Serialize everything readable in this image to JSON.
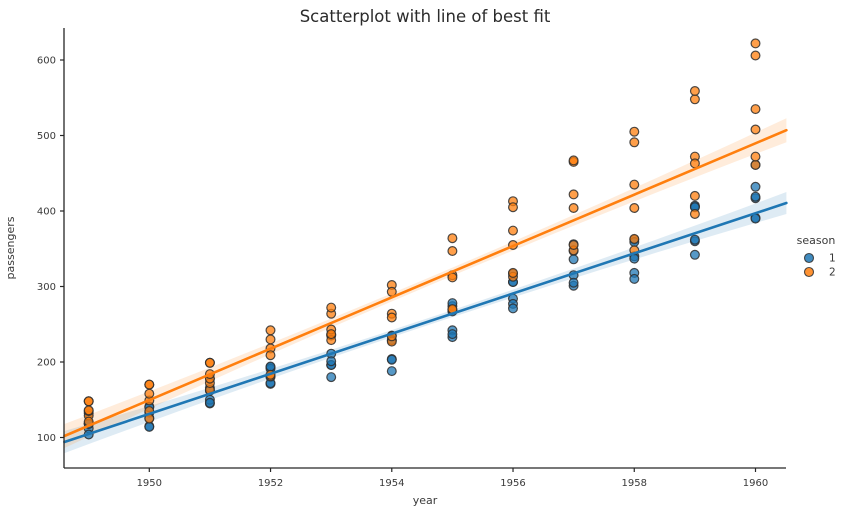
{
  "title": "Scatterplot with line of best fit",
  "x_axis": {
    "label": "year",
    "ticks": [
      "1950",
      "1952",
      "1954",
      "1956",
      "1958",
      "1960"
    ],
    "tick_years": [
      1950,
      1952,
      1954,
      1956,
      1958,
      1960
    ]
  },
  "y_axis": {
    "label": "passengers",
    "ticks": [
      "100",
      "200",
      "300",
      "400",
      "500",
      "600"
    ],
    "tick_values": [
      100,
      200,
      300,
      400,
      500,
      600
    ]
  },
  "legend": {
    "title": "season",
    "items": [
      {
        "label": "1",
        "color": "#1f77b4"
      },
      {
        "label": "2",
        "color": "#ff7f0e"
      }
    ]
  },
  "colors": {
    "season1": "#1f77b4",
    "season2": "#ff7f0e",
    "point_edge": "#2e2e2e",
    "spine": "#262626",
    "band1": "rgba(31,119,180,0.15)",
    "band2": "rgba(255,127,14,0.15)"
  },
  "chart_data": {
    "type": "scatter",
    "title": "Scatterplot with line of best fit",
    "xlabel": "year",
    "ylabel": "passengers",
    "xlim": [
      1948.6,
      1960.51
    ],
    "ylim": [
      57,
      640
    ],
    "grid": false,
    "legend_position": "right",
    "x": [
      1949,
      1950,
      1951,
      1952,
      1953,
      1954,
      1955,
      1956,
      1957,
      1958,
      1959,
      1960
    ],
    "series": [
      {
        "name": "1",
        "color": "#1f77b4",
        "values_by_year": [
          [
            112,
            118,
            132,
            119,
            104,
            118
          ],
          [
            115,
            126,
            141,
            133,
            114,
            140
          ],
          [
            145,
            150,
            178,
            162,
            146,
            166
          ],
          [
            171,
            180,
            193,
            191,
            172,
            194
          ],
          [
            196,
            196,
            236,
            211,
            180,
            201
          ],
          [
            204,
            188,
            235,
            229,
            203,
            229
          ],
          [
            242,
            233,
            267,
            274,
            237,
            278
          ],
          [
            284,
            277,
            317,
            306,
            271,
            306
          ],
          [
            315,
            301,
            356,
            347,
            305,
            336
          ],
          [
            340,
            318,
            362,
            359,
            310,
            337
          ],
          [
            360,
            342,
            406,
            407,
            362,
            405
          ],
          [
            417,
            391,
            419,
            461,
            390,
            432
          ]
        ]
      },
      {
        "name": "2",
        "color": "#ff7f0e",
        "values_by_year": [
          [
            129,
            121,
            135,
            148,
            148,
            136
          ],
          [
            135,
            125,
            149,
            170,
            170,
            158
          ],
          [
            163,
            172,
            178,
            199,
            199,
            184
          ],
          [
            181,
            183,
            218,
            230,
            242,
            209
          ],
          [
            235,
            229,
            243,
            264,
            272,
            237
          ],
          [
            227,
            234,
            264,
            302,
            293,
            259
          ],
          [
            269,
            270,
            315,
            364,
            347,
            312
          ],
          [
            313,
            318,
            374,
            413,
            405,
            355
          ],
          [
            348,
            355,
            422,
            465,
            467,
            404
          ],
          [
            348,
            363,
            435,
            491,
            505,
            404
          ],
          [
            396,
            420,
            472,
            548,
            559,
            463
          ],
          [
            461,
            472,
            535,
            622,
            606,
            508
          ]
        ]
      }
    ],
    "regression_lines": [
      {
        "series": "1",
        "color": "#1f77b4",
        "x0": 1948.6,
        "v0": 94.0,
        "x1": 1960.51,
        "v1": 410.6,
        "ci_half_mid": 4.6,
        "ci_half_end": 14.6
      },
      {
        "series": "2",
        "color": "#ff7f0e",
        "x0": 1948.6,
        "v0": 102.0,
        "x1": 1960.51,
        "v1": 507.0,
        "ci_half_mid": 5.3,
        "ci_half_end": 15.9
      }
    ]
  }
}
